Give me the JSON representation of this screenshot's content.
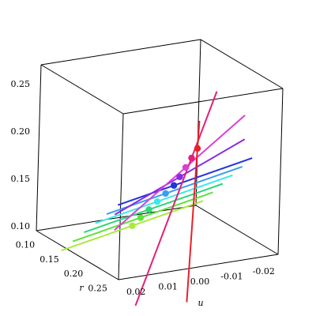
{
  "chart_data": {
    "type": "line",
    "view": "3d-box",
    "title": "",
    "axes": {
      "x": {
        "label": "u",
        "range": [
          0.025,
          -0.025
        ],
        "ticks": [
          "0.02",
          "0.01",
          "0.00",
          "-0.01",
          "-0.02"
        ],
        "tick_values": [
          0.02,
          0.01,
          0.0,
          -0.01,
          -0.02
        ]
      },
      "y": {
        "label": "r",
        "range": [
          0.09,
          0.26
        ],
        "ticks": [
          "0.10",
          "0.15",
          "0.20",
          "0.25"
        ],
        "tick_values": [
          0.1,
          0.15,
          0.2,
          0.25
        ]
      },
      "z": {
        "label": "",
        "range": [
          0.095,
          0.27
        ],
        "ticks": [
          "0.10",
          "0.15",
          "0.20",
          "0.25"
        ],
        "tick_values": [
          0.1,
          0.15,
          0.2,
          0.25
        ]
      }
    },
    "grid": false,
    "legend": "none",
    "series": [
      {
        "color": "#a8ea3c",
        "point": [
          0.008,
          0.175,
          0.117
        ]
      },
      {
        "color": "#5fe23a",
        "point": [
          0.007,
          0.185,
          0.128
        ]
      },
      {
        "color": "#2ed67a",
        "point": [
          0.006,
          0.195,
          0.139
        ]
      },
      {
        "color": "#3ee8e8",
        "point": [
          0.005,
          0.205,
          0.15
        ]
      },
      {
        "color": "#3a9ef0",
        "point": [
          0.004,
          0.215,
          0.161
        ]
      },
      {
        "color": "#2233dd",
        "point": [
          0.003,
          0.225,
          0.172
        ]
      },
      {
        "color": "#8a2be2",
        "point": [
          0.002,
          0.23,
          0.182
        ]
      },
      {
        "color": "#d93fd9",
        "point": [
          0.001,
          0.235,
          0.193
        ]
      },
      {
        "color": "#e0207a",
        "point": [
          0.0,
          0.24,
          0.204
        ]
      },
      {
        "color": "#e8202a",
        "point": [
          -0.001,
          0.245,
          0.215
        ]
      }
    ]
  }
}
